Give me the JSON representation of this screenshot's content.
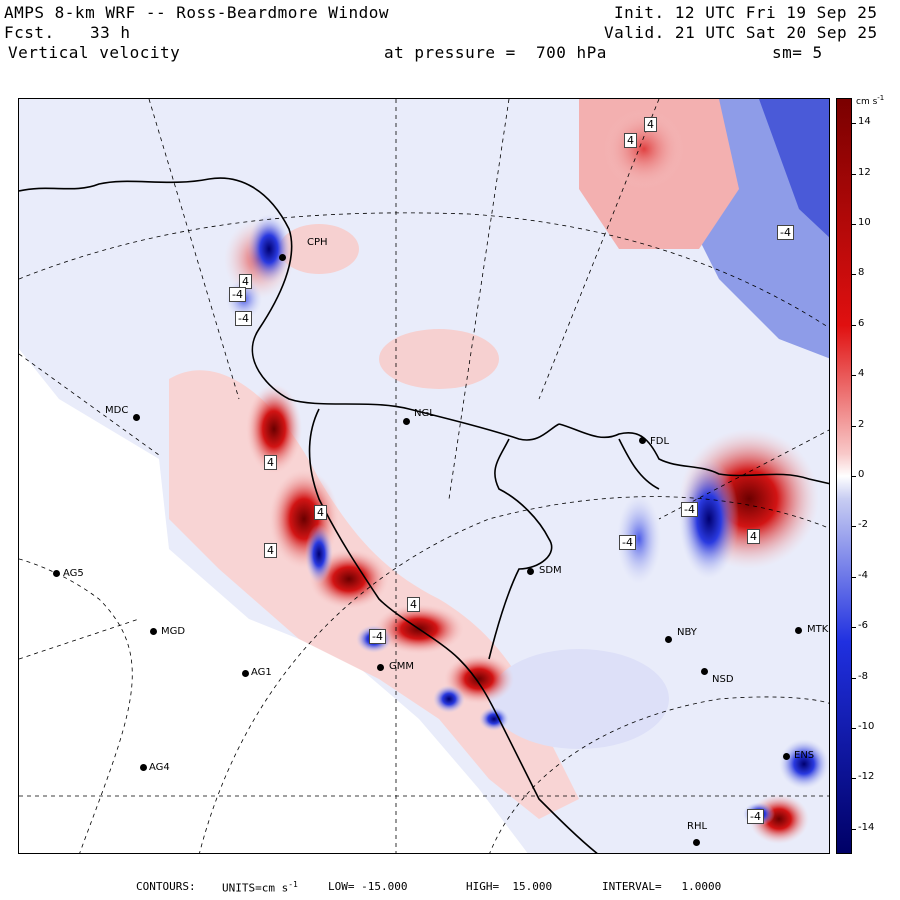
{
  "header": {
    "model": "AMPS 8-km WRF -- Ross-Beardmore Window",
    "init": "Init. 12 UTC Fri 19 Sep 25",
    "fcst_label": "Fcst.",
    "fcst_value": "33 h",
    "valid": "Valid. 21 UTC Sat 20 Sep 25",
    "field": "Vertical velocity",
    "pressure": "at pressure =  700 hPa",
    "smoothing": "sm= 5"
  },
  "colorbar": {
    "units": "cm s",
    "units_sup": "-1",
    "ticks": [
      "14",
      "12",
      "10",
      "8",
      "6",
      "4",
      "2",
      "0",
      "-2",
      "-4",
      "-6",
      "-8",
      "-10",
      "-12",
      "-14"
    ],
    "colors": {
      "pos_dark": "#7a0000",
      "pos_mid": "#e01010",
      "pos_light": "#f8c8c8",
      "zero": "#ffffff",
      "neg_light": "#c8cdf2",
      "neg_mid": "#2030e0",
      "neg_dark": "#000066"
    }
  },
  "footer": {
    "contours_label": "CONTOURS:",
    "units_label": "UNITS=cm s",
    "units_sup": "-1",
    "low": "LOW= -15.000",
    "high": "HIGH=  15.000",
    "interval": "INTERVAL=   1.0000"
  },
  "stations": [
    {
      "id": "CPH",
      "name": "CPH"
    },
    {
      "id": "MDC",
      "name": "MDC"
    },
    {
      "id": "NGL",
      "name": "NGL"
    },
    {
      "id": "FDL",
      "name": "FDL"
    },
    {
      "id": "AG5",
      "name": "AG5"
    },
    {
      "id": "SDM",
      "name": "SDM"
    },
    {
      "id": "MGD",
      "name": "MGD"
    },
    {
      "id": "NBY",
      "name": "NBY"
    },
    {
      "id": "MTK",
      "name": "MTK"
    },
    {
      "id": "AG1",
      "name": "AG1"
    },
    {
      "id": "GMM",
      "name": "GMM"
    },
    {
      "id": "NSD",
      "name": "NSD"
    },
    {
      "id": "AG4",
      "name": "AG4"
    },
    {
      "id": "ENS",
      "name": "ENS"
    },
    {
      "id": "RHL",
      "name": "RHL"
    }
  ],
  "contour_labels": [
    "4",
    "4",
    "-4",
    "-4",
    "4",
    "4",
    "-4",
    "-4",
    "4",
    "-4",
    "4",
    "-4",
    "4",
    "4",
    "-4"
  ]
}
